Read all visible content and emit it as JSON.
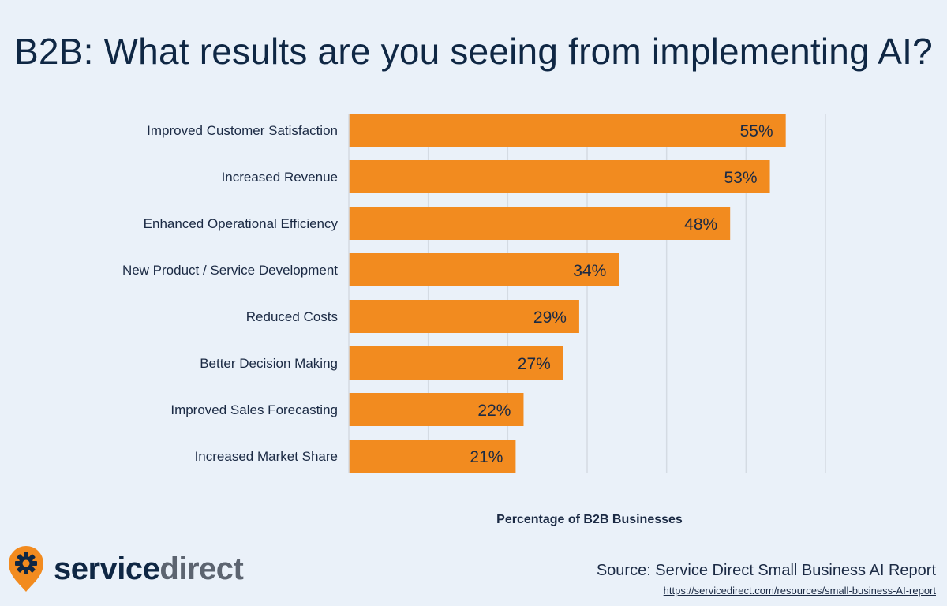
{
  "title": "B2B: What results are you seeing from implementing AI?",
  "footer": {
    "logo_part1": "service",
    "logo_part2": "direct",
    "source": "Source: Service Direct Small Business AI Report",
    "url": "https://servicedirect.com/resources/small-business-AI-report"
  },
  "colors": {
    "bar": "#f28b1f",
    "background": "#eaf1f9",
    "grid": "#d4dbe3",
    "text": "#1b2a44"
  },
  "chart_data": {
    "type": "bar",
    "orientation": "horizontal",
    "categories": [
      "Improved Customer Satisfaction",
      "Increased Revenue",
      "Enhanced Operational Efficiency",
      "New Product / Service Development",
      "Reduced Costs",
      "Better Decision Making",
      "Improved Sales Forecasting",
      "Increased Market Share"
    ],
    "values": [
      55,
      53,
      48,
      34,
      29,
      27,
      22,
      21
    ],
    "data_labels": [
      "55%",
      "53%",
      "48%",
      "34%",
      "29%",
      "27%",
      "22%",
      "21%"
    ],
    "title": "B2B: What results are you seeing from implementing AI?",
    "xlabel": "Percentage of B2B Businesses",
    "ylabel": "",
    "xlim": [
      0,
      60
    ],
    "grid": true,
    "legend": "none"
  }
}
